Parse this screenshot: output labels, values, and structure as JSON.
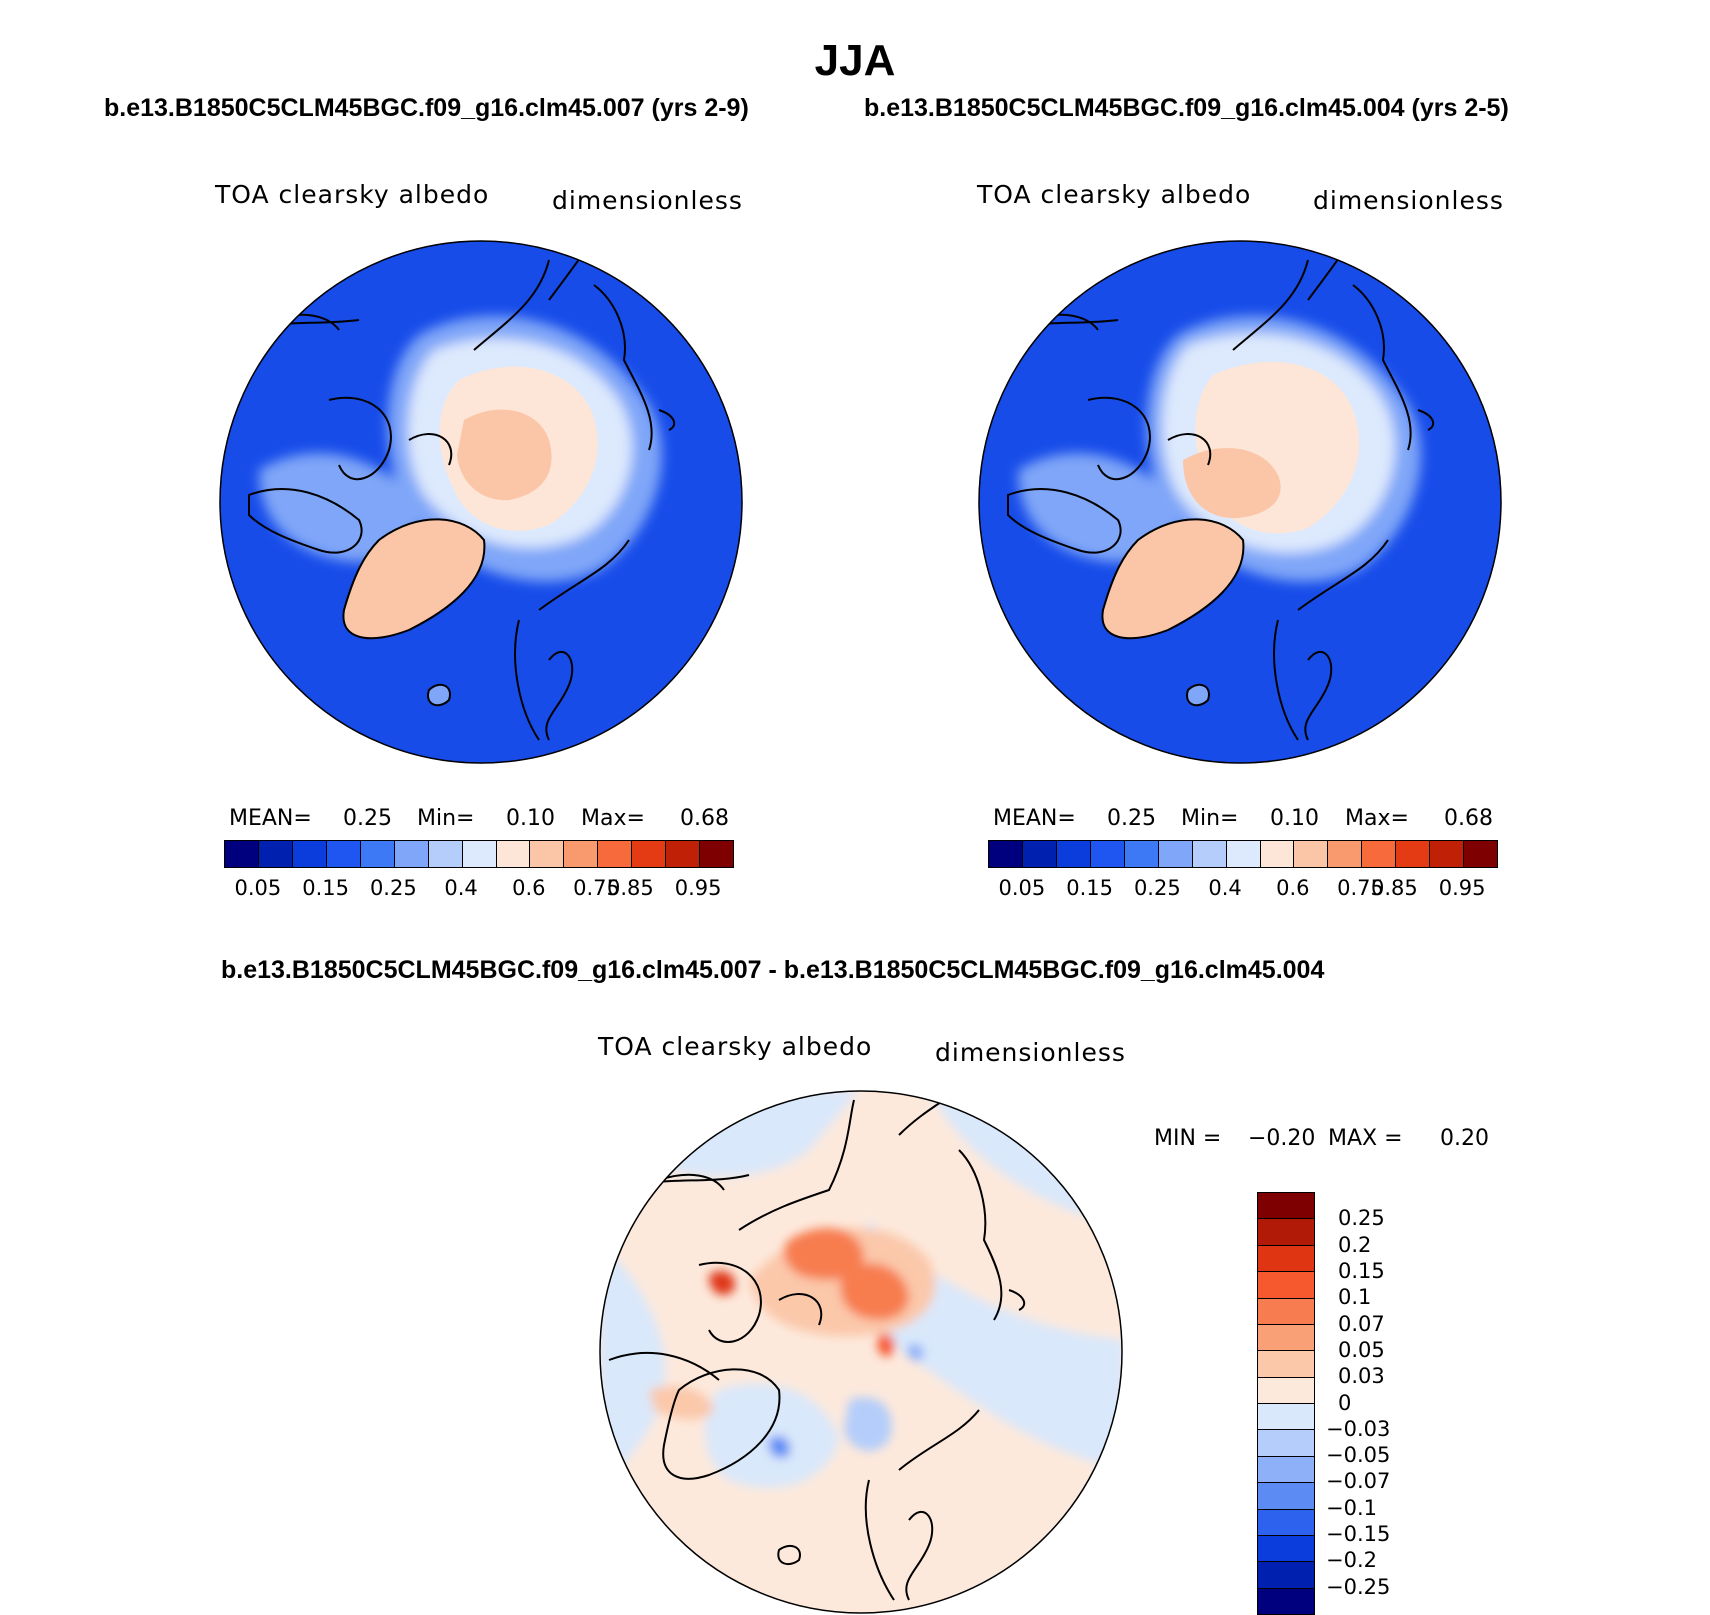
{
  "title": "JJA",
  "run_a_title": "b.e13.B1850C5CLM45BGC.f09_g16.clm45.007 (yrs 2-9)",
  "run_b_title": "b.e13.B1850C5CLM45BGC.f09_g16.clm45.004 (yrs 2-5)",
  "diff_title": "b.e13.B1850C5CLM45BGC.f09_g16.clm45.007 - b.e13.B1850C5CLM45BGC.f09_g16.clm45.004",
  "panels": {
    "left": {
      "variable": "TOA clearsky albedo",
      "units": "dimensionless",
      "stats": {
        "mean_label": "MEAN=",
        "mean": "0.25",
        "min_label": "Min=",
        "min": "0.10",
        "max_label": "Max=",
        "max": "0.68"
      }
    },
    "right": {
      "variable": "TOA clearsky albedo",
      "units": "dimensionless",
      "stats": {
        "mean_label": "MEAN=",
        "mean": "0.25",
        "min_label": "Min=",
        "min": "0.10",
        "max_label": "Max=",
        "max": "0.68"
      }
    },
    "diff": {
      "variable": "TOA clearsky albedo",
      "units": "dimensionless",
      "stats": {
        "min_label": "MIN =",
        "min": "−0.20",
        "max_label": "MAX =",
        "max": "0.20"
      }
    }
  },
  "colorbar_abs": {
    "colors": [
      "#00007f",
      "#0020b0",
      "#0a3ddc",
      "#1f55f0",
      "#3d78f5",
      "#7fa6f8",
      "#b4cdfb",
      "#dde9fd",
      "#fde6d7",
      "#fbc6a8",
      "#f99a6e",
      "#f66a3c",
      "#e53b14",
      "#bf2006",
      "#7f0000"
    ],
    "ticks": [
      "0.05",
      "0.15",
      "0.25",
      "0.4",
      "0.6",
      "0.75",
      "0.85",
      "0.95"
    ]
  },
  "colorbar_diff": {
    "colors": [
      "#7f0000",
      "#b01a06",
      "#df3512",
      "#f6592d",
      "#f77d50",
      "#f9a077",
      "#fbc8aa",
      "#fde9dc",
      "#d9e8fb",
      "#b4cdfb",
      "#8db0f8",
      "#5d8bf4",
      "#2d62ee",
      "#0a3ddc",
      "#0020b0",
      "#00007f"
    ],
    "ticks": [
      "0.25",
      "0.2",
      "0.15",
      "0.1",
      "0.07",
      "0.05",
      "0.03",
      "0",
      "−0.03",
      "−0.05",
      "−0.07",
      "−0.1",
      "−0.15",
      "−0.2",
      "−0.25"
    ]
  }
}
